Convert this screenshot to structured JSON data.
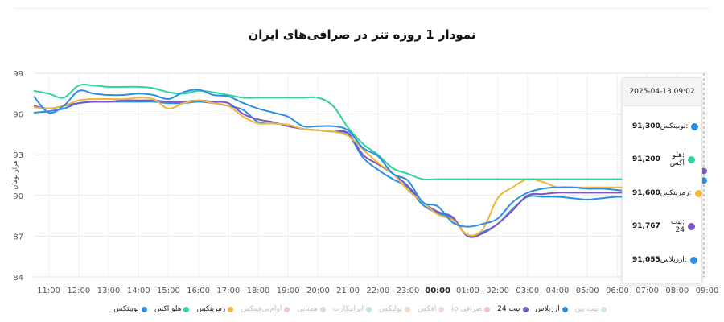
{
  "chart_data": {
    "type": "line",
    "title": "نمودار 1 روزه تتر در صرافی‌های ایران",
    "ylabel": "هزار تومان",
    "xlabel": "",
    "ylim": [
      84,
      99
    ],
    "yticks": [
      "84",
      "87",
      "90",
      "93",
      "96",
      "99"
    ],
    "x": [
      "10:30",
      "11:00",
      "11:30",
      "12:00",
      "12:30",
      "13:00",
      "13:30",
      "14:00",
      "14:30",
      "15:00",
      "15:30",
      "16:00",
      "16:30",
      "17:00",
      "17:30",
      "18:00",
      "18:30",
      "19:00",
      "19:30",
      "20:00",
      "20:30",
      "21:00",
      "21:30",
      "22:00",
      "22:30",
      "23:00",
      "23:30",
      "00:00",
      "00:30",
      "01:00",
      "01:30",
      "02:00",
      "02:30",
      "03:00",
      "03:30",
      "04:00",
      "04:30",
      "05:00",
      "05:30",
      "06:00",
      "06:30",
      "07:00",
      "07:30",
      "08:00",
      "08:30",
      "09:00"
    ],
    "xticks": [
      "11:00",
      "12:00",
      "13:00",
      "14:00",
      "15:00",
      "16:00",
      "17:00",
      "18:00",
      "19:00",
      "20:00",
      "21:00",
      "22:00",
      "23:00",
      "00:00",
      "01:00",
      "02:00",
      "03:00",
      "04:00",
      "05:00",
      "06:00",
      "07:00",
      "08:00",
      "09:00"
    ],
    "xtick_bold": "00:00",
    "grid": true,
    "series": [
      {
        "name": "نوبیتکس",
        "color": "#2c8ee3",
        "values": [
          97.3,
          96.1,
          96.6,
          97.7,
          97.5,
          97.4,
          97.4,
          97.5,
          97.4,
          97.1,
          97.6,
          97.8,
          97.4,
          97.3,
          96.8,
          96.4,
          96.1,
          95.8,
          95.1,
          95.1,
          95.1,
          94.8,
          93.5,
          92.9,
          91.6,
          91.1,
          89.5,
          89.2,
          88.0,
          87.7,
          87.9,
          88.3,
          89.5,
          90.2,
          90.5,
          90.6,
          90.6,
          90.5,
          90.5,
          90.4,
          90.3,
          null,
          null,
          null,
          null,
          null
        ]
      },
      {
        "name": "هلو اکس",
        "color": "#2fd3a0",
        "values": [
          97.7,
          97.5,
          97.2,
          98.1,
          98.1,
          98.0,
          98.0,
          98.0,
          97.9,
          97.6,
          97.5,
          97.7,
          97.6,
          97.4,
          97.2,
          97.2,
          97.2,
          97.2,
          97.2,
          97.2,
          96.6,
          95.0,
          93.8,
          93.0,
          92.0,
          91.6,
          91.2,
          91.2,
          91.2,
          91.2,
          91.2,
          91.2,
          91.2,
          91.2,
          91.2,
          91.2,
          91.2,
          91.2,
          91.2,
          91.2,
          91.2,
          null,
          null,
          null,
          null,
          91.2
        ]
      },
      {
        "name": "رمزینکس",
        "color": "#f0b73a",
        "values": [
          96.5,
          96.4,
          96.6,
          97.0,
          97.1,
          97.1,
          97.1,
          97.2,
          97.1,
          96.4,
          96.8,
          97.0,
          96.8,
          96.6,
          95.8,
          95.3,
          95.3,
          95.2,
          94.9,
          94.8,
          94.7,
          94.4,
          93.4,
          92.4,
          91.6,
          90.4,
          89.5,
          88.6,
          88.2,
          87.1,
          87.5,
          89.8,
          90.6,
          91.2,
          91.0,
          90.6,
          90.6,
          90.6,
          90.6,
          90.6,
          90.6,
          null,
          null,
          null,
          null,
          null
        ]
      },
      {
        "name": "بیت 24",
        "color": "#7b56c4",
        "values": [
          96.6,
          96.4,
          96.6,
          96.8,
          96.9,
          96.9,
          97.0,
          97.0,
          97.0,
          96.9,
          96.9,
          97.0,
          96.9,
          96.8,
          96.0,
          95.6,
          95.4,
          95.1,
          94.9,
          94.8,
          94.7,
          94.6,
          93.0,
          92.3,
          91.6,
          90.7,
          89.5,
          88.8,
          88.4,
          87.0,
          87.2,
          87.9,
          88.9,
          90.0,
          90.1,
          90.2,
          90.2,
          90.2,
          90.2,
          90.2,
          90.2,
          null,
          null,
          null,
          null,
          91.8
        ]
      },
      {
        "name": "ارزپلاس",
        "color": "#2c8ee3",
        "values": [
          96.1,
          96.2,
          96.4,
          96.8,
          96.9,
          96.9,
          96.9,
          96.9,
          96.9,
          96.8,
          96.8,
          96.9,
          96.8,
          96.6,
          96.3,
          95.4,
          95.3,
          95.2,
          94.9,
          94.8,
          94.7,
          94.5,
          92.8,
          91.9,
          91.2,
          90.6,
          89.3,
          88.7,
          88.3,
          87.0,
          87.3,
          87.9,
          89.0,
          89.9,
          89.9,
          89.9,
          89.8,
          89.7,
          89.8,
          89.9,
          89.9,
          null,
          null,
          null,
          null,
          91.1
        ]
      }
    ]
  },
  "tooltip": {
    "timestamp": "2025-04-13 09:02",
    "rows": [
      {
        "name": ":نوبیتکس",
        "value": "91,300",
        "color": "#2c8ee3"
      },
      {
        "name": ":هلو اکس",
        "value": "91,200",
        "color": "#2fd3a0"
      },
      {
        "name": ":رمزینکس",
        "value": "91,600",
        "color": "#f0b73a"
      },
      {
        "name": ":بیت 24",
        "value": "91,767",
        "color": "#7b56c4"
      },
      {
        "name": ":ارزپلاس",
        "value": "91,055",
        "color": "#2c8ee3"
      }
    ]
  },
  "legend": [
    {
      "name": "نوبیتکس",
      "color": "#2c8ee3",
      "active": true
    },
    {
      "name": "هلو اکس",
      "color": "#2fd3a0",
      "active": true
    },
    {
      "name": "رمزینکس",
      "color": "#f0b73a",
      "active": true
    },
    {
      "name": "اوام‌بی‌فینکس",
      "color": "#f3c6cf",
      "active": false
    },
    {
      "name": "همتایی",
      "color": "#dcdcdc",
      "active": false
    },
    {
      "name": "ایرانیکارت",
      "color": "#bfe6e0",
      "active": false
    },
    {
      "name": "تولیکس",
      "color": "#f7d9c4",
      "active": false
    },
    {
      "name": "افکس",
      "color": "#f7d6d6",
      "active": false
    },
    {
      "name": "صرافی io",
      "color": "#f4c1c1",
      "active": false
    },
    {
      "name": "بیت 24",
      "color": "#7b56c4",
      "active": true
    },
    {
      "name": "ارزپلاس",
      "color": "#2c8ee3",
      "active": true
    },
    {
      "name": "بیت پین",
      "color": "#c7ecd9",
      "active": false
    }
  ]
}
